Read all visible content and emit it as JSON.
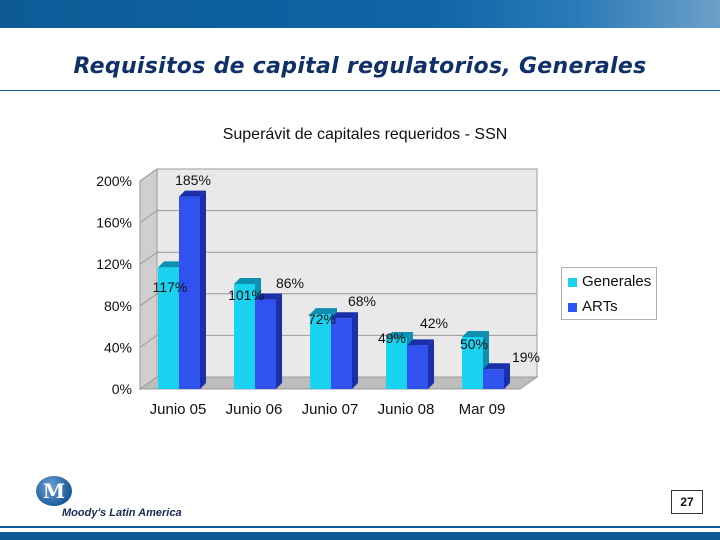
{
  "slide": {
    "title": "Requisitos de capital regulatorios, Generales",
    "brand": "Moody's Latin America",
    "logo_letter": "M",
    "page_number": "27"
  },
  "colors": {
    "band": "#0f5a96",
    "title": "#10306a",
    "generales": "#19d2f0",
    "arts": "#2f52f0"
  },
  "chart_data": {
    "type": "bar",
    "title": "Superávit de capitales requeridos - SSN",
    "categories": [
      "Junio 05",
      "Junio 06",
      "Junio 07",
      "Junio 08",
      "Mar 09"
    ],
    "series": [
      {
        "name": "Generales",
        "values": [
          117,
          101,
          72,
          49,
          50
        ],
        "labels": [
          "117%",
          "101%",
          "72%",
          "49%",
          "50%"
        ]
      },
      {
        "name": "ARTs",
        "values": [
          185,
          86,
          68,
          42,
          19
        ],
        "labels": [
          "185%",
          "86%",
          "68%",
          "42%",
          "19%"
        ]
      }
    ],
    "ylim": [
      0,
      200
    ],
    "yticks": [
      "0%",
      "40%",
      "80%",
      "120%",
      "160%",
      "200%"
    ],
    "grid": true,
    "legend_position": "right"
  }
}
